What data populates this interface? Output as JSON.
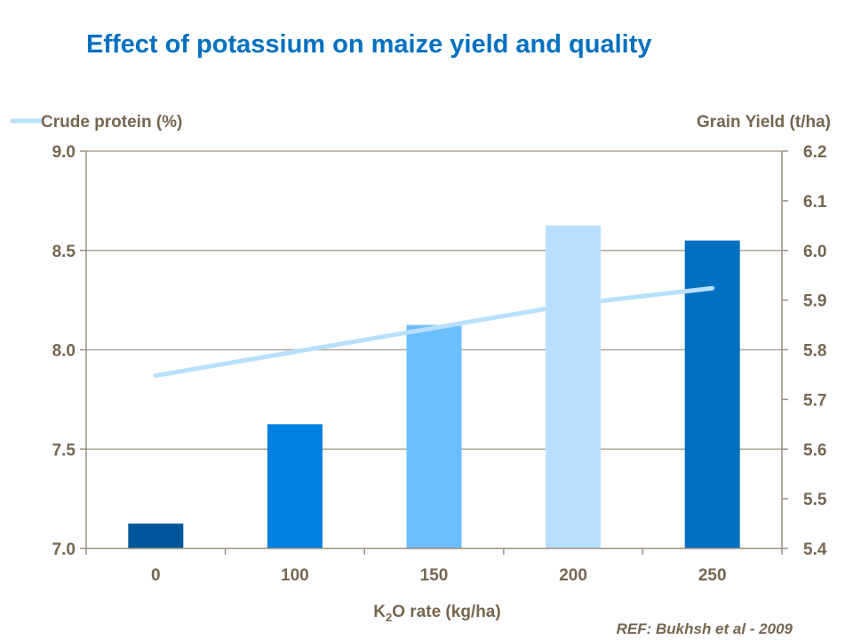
{
  "chart_data": {
    "type": "bar+line",
    "title": "Effect of potassium on maize yield and quality",
    "xlabel": "K2O rate (kg/ha)",
    "xlabel_main": "K",
    "xlabel_sub": "2",
    "xlabel_rest": "O rate (kg/ha)",
    "categories": [
      "0",
      "100",
      "150",
      "200",
      "250"
    ],
    "bar_series": {
      "axis": "right",
      "values": [
        5.45,
        5.65,
        5.85,
        6.05,
        6.02
      ],
      "colors": [
        "#00569a",
        "#0080e0",
        "#6cbfff",
        "#b8e0fe",
        "#0070c0"
      ]
    },
    "line_series": {
      "name": "Crude protein (%)",
      "axis": "left",
      "values": [
        7.87,
        7.99,
        8.11,
        8.23,
        8.31
      ],
      "color": "#b8e0fe"
    },
    "left_axis": {
      "label": "Crude protein (%)",
      "ylim": [
        7.0,
        9.0
      ],
      "ticks": [
        "7.0",
        "7.5",
        "8.0",
        "8.5",
        "9.0"
      ]
    },
    "right_axis": {
      "label": "Grain Yield (t/ha)",
      "ylim": [
        5.4,
        6.2
      ],
      "ticks": [
        "5.4",
        "5.5",
        "5.6",
        "5.7",
        "5.8",
        "5.9",
        "6.0",
        "6.1",
        "6.2"
      ]
    },
    "grid": true,
    "legend_position": "top-left",
    "reference": "REF:  Bukhsh et al - 2009"
  }
}
